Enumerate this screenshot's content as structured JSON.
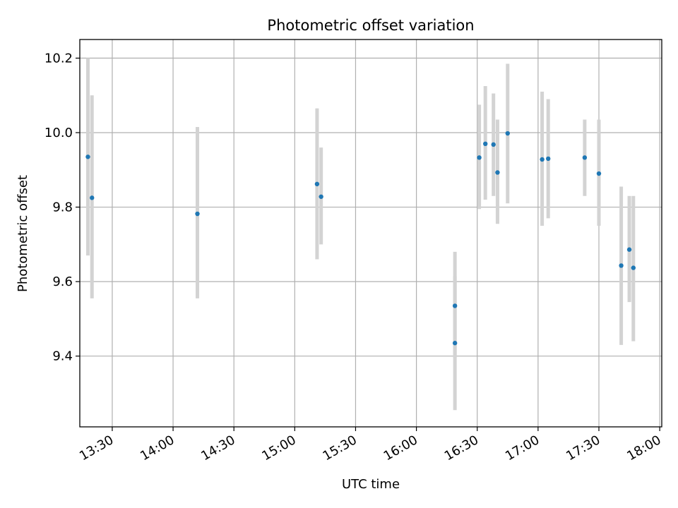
{
  "chart_data": {
    "type": "scatter",
    "title": "Photometric offset variation",
    "xlabel": "UTC time",
    "ylabel": "Photometric offset",
    "x_ticks": [
      "13:30",
      "14:00",
      "14:30",
      "15:00",
      "15:30",
      "16:00",
      "16:30",
      "17:00",
      "17:30",
      "18:00"
    ],
    "y_ticks": [
      "9.4",
      "9.6",
      "9.8",
      "10.0",
      "10.2"
    ],
    "xlim": [
      "13:14",
      "18:01"
    ],
    "ylim": [
      9.21,
      10.25
    ],
    "grid": true,
    "point_color": "#1f77b4",
    "errorbar_color": "#d3d3d3",
    "points": [
      {
        "x": "13:18",
        "y": 9.935,
        "y_low": 9.67,
        "y_high": 10.2
      },
      {
        "x": "13:20",
        "y": 9.825,
        "y_low": 9.555,
        "y_high": 10.1
      },
      {
        "x": "14:12",
        "y": 9.782,
        "y_low": 9.555,
        "y_high": 10.015
      },
      {
        "x": "15:11",
        "y": 9.862,
        "y_low": 9.66,
        "y_high": 10.065
      },
      {
        "x": "15:13",
        "y": 9.828,
        "y_low": 9.7,
        "y_high": 9.96
      },
      {
        "x": "16:19",
        "y": 9.535,
        "y_low": 9.395,
        "y_high": 9.68
      },
      {
        "x": "16:19",
        "y": 9.435,
        "y_low": 9.255,
        "y_high": 9.615
      },
      {
        "x": "16:31",
        "y": 9.933,
        "y_low": 9.795,
        "y_high": 10.075
      },
      {
        "x": "16:34",
        "y": 9.97,
        "y_low": 9.82,
        "y_high": 10.125
      },
      {
        "x": "16:38",
        "y": 9.968,
        "y_low": 9.83,
        "y_high": 10.105
      },
      {
        "x": "16:40",
        "y": 9.893,
        "y_low": 9.755,
        "y_high": 10.035
      },
      {
        "x": "16:45",
        "y": 9.998,
        "y_low": 9.81,
        "y_high": 10.185
      },
      {
        "x": "17:02",
        "y": 9.928,
        "y_low": 9.75,
        "y_high": 10.11
      },
      {
        "x": "17:05",
        "y": 9.93,
        "y_low": 9.77,
        "y_high": 10.09
      },
      {
        "x": "17:23",
        "y": 9.933,
        "y_low": 9.83,
        "y_high": 10.035
      },
      {
        "x": "17:30",
        "y": 9.89,
        "y_low": 9.75,
        "y_high": 10.035
      },
      {
        "x": "17:41",
        "y": 9.643,
        "y_low": 9.43,
        "y_high": 9.855
      },
      {
        "x": "17:45",
        "y": 9.686,
        "y_low": 9.545,
        "y_high": 9.83
      },
      {
        "x": "17:47",
        "y": 9.637,
        "y_low": 9.44,
        "y_high": 9.83
      }
    ]
  }
}
